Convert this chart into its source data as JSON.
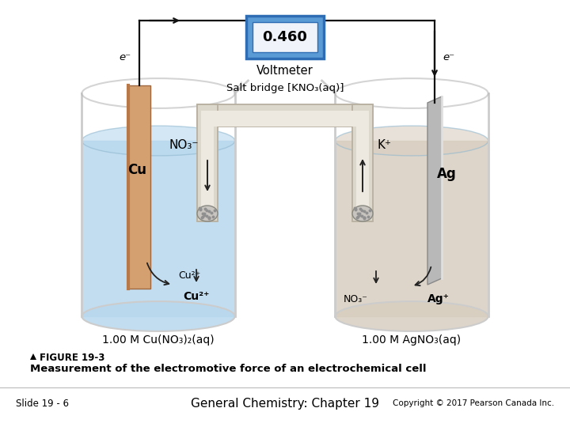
{
  "title_figure": "FIGURE 19-3",
  "title_main": "Measurement of the electromotive force of an electrochemical cell",
  "slide_text": "Slide 19 - 6",
  "center_text": "General Chemistry: Chapter 19",
  "copyright_text": "Copyright © 2017 Pearson Canada Inc.",
  "voltmeter_value": "0.460",
  "voltmeter_label": "Voltmeter",
  "voltmeter_blue": "#5b9bd5",
  "voltmeter_dark_blue": "#2e6db4",
  "voltmeter_display": "#f0f4fa",
  "salt_bridge_label": "Salt bridge [KNO₃(aq)]",
  "salt_bridge_fill": "#ddd8cc",
  "salt_bridge_edge": "#b8b0a0",
  "no3_label": "NO₃⁻",
  "k_label": "K⁺",
  "left_electrode_label": "Cu",
  "right_electrode_label": "Ag",
  "left_solution_label": "1.00 M Cu(NO₃)₂(aq)",
  "right_solution_label": "1.00 M AgNO₃(aq)",
  "left_ion1": "Cu²⁺",
  "left_ion2": "Cu²⁺",
  "right_ion1": "NO₃⁻",
  "right_ion2": "Ag⁺",
  "e_minus": "e⁻",
  "bg_color": "#ffffff",
  "left_solution_color": "#b8d8ee",
  "right_solution_color": "#d8cec0",
  "left_electrode_color_top": "#d4a070",
  "left_electrode_color_bot": "#b87848",
  "right_electrode_color": "#b8b8b8",
  "beaker_rim_color": "#aaaaaa",
  "beaker_glass_color": "#cccccc",
  "arrow_color": "#222222",
  "wire_color": "#111111",
  "porous_plug_color": "#c8c4c0",
  "plug_dot_color": "#909090"
}
